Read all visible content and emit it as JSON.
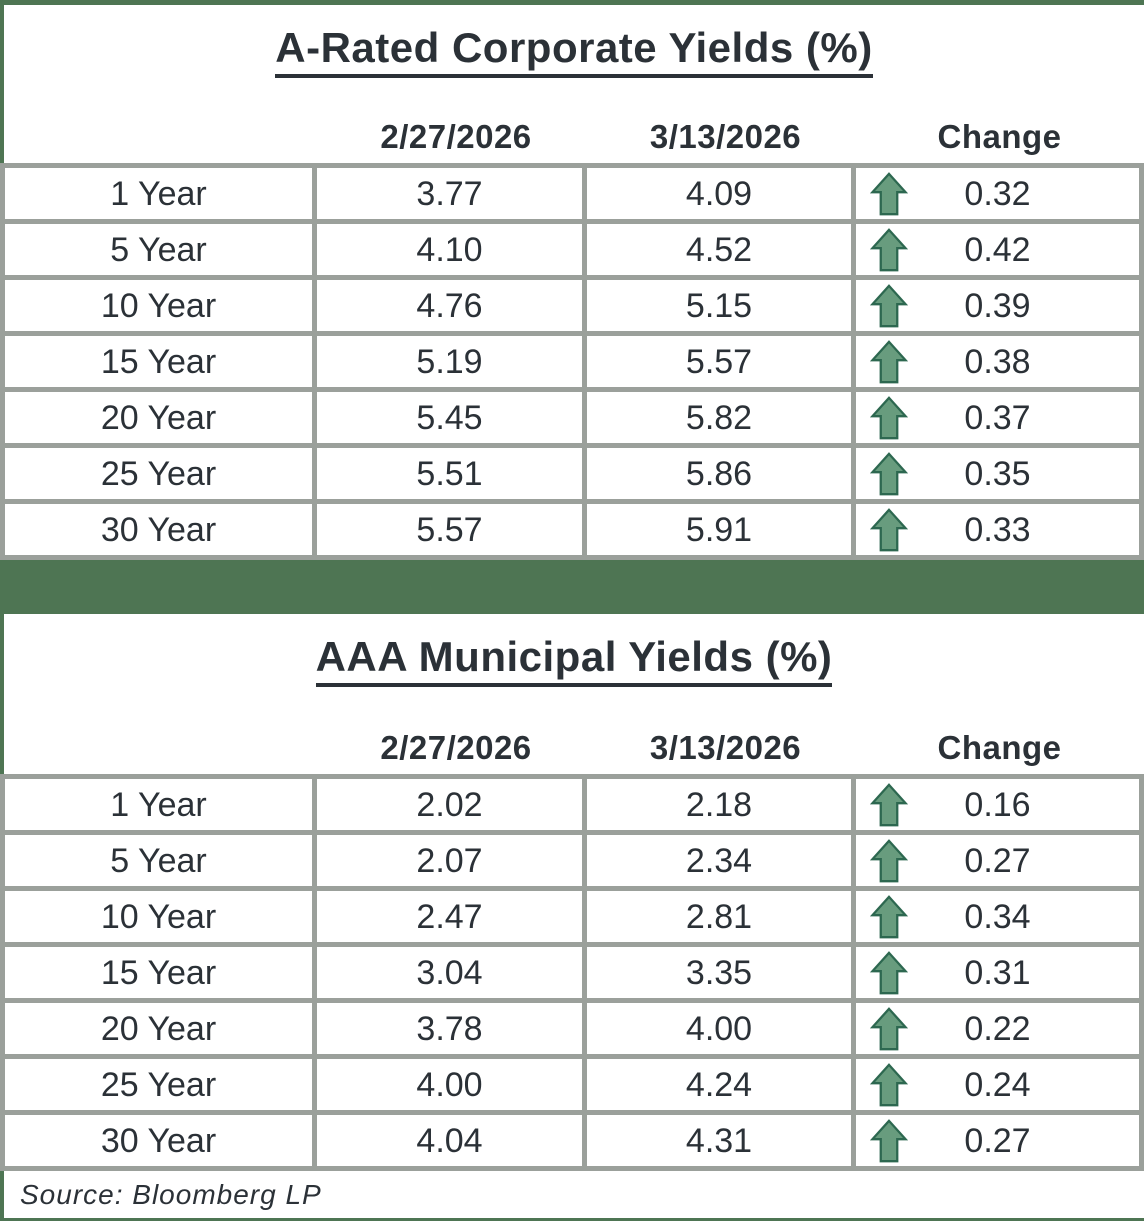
{
  "page": {
    "colors": {
      "green": "#4e7553",
      "gray": "#9ba09b",
      "text": "#2b3137",
      "arrow_fill": "#689c7e",
      "arrow_stroke": "#2d6850"
    }
  },
  "tables": [
    {
      "title": "A-Rated Corporate Yields (%)",
      "columns": [
        "",
        "2/27/2026",
        "3/13/2026",
        "Change"
      ],
      "rows": [
        {
          "term": "1 Year",
          "prev": "3.77",
          "curr": "4.09",
          "direction": "up",
          "change": "0.32"
        },
        {
          "term": "5 Year",
          "prev": "4.10",
          "curr": "4.52",
          "direction": "up",
          "change": "0.42"
        },
        {
          "term": "10 Year",
          "prev": "4.76",
          "curr": "5.15",
          "direction": "up",
          "change": "0.39"
        },
        {
          "term": "15 Year",
          "prev": "5.19",
          "curr": "5.57",
          "direction": "up",
          "change": "0.38"
        },
        {
          "term": "20 Year",
          "prev": "5.45",
          "curr": "5.82",
          "direction": "up",
          "change": "0.37"
        },
        {
          "term": "25 Year",
          "prev": "5.51",
          "curr": "5.86",
          "direction": "up",
          "change": "0.35"
        },
        {
          "term": "30 Year",
          "prev": "5.57",
          "curr": "5.91",
          "direction": "up",
          "change": "0.33"
        }
      ]
    },
    {
      "title": "AAA Municipal Yields (%)",
      "columns": [
        "",
        "2/27/2026",
        "3/13/2026",
        "Change"
      ],
      "rows": [
        {
          "term": "1 Year",
          "prev": "2.02",
          "curr": "2.18",
          "direction": "up",
          "change": "0.16"
        },
        {
          "term": "5 Year",
          "prev": "2.07",
          "curr": "2.34",
          "direction": "up",
          "change": "0.27"
        },
        {
          "term": "10 Year",
          "prev": "2.47",
          "curr": "2.81",
          "direction": "up",
          "change": "0.34"
        },
        {
          "term": "15 Year",
          "prev": "3.04",
          "curr": "3.35",
          "direction": "up",
          "change": "0.31"
        },
        {
          "term": "20 Year",
          "prev": "3.78",
          "curr": "4.00",
          "direction": "up",
          "change": "0.22"
        },
        {
          "term": "25 Year",
          "prev": "4.00",
          "curr": "4.24",
          "direction": "up",
          "change": "0.24"
        },
        {
          "term": "30 Year",
          "prev": "4.04",
          "curr": "4.31",
          "direction": "up",
          "change": "0.27"
        }
      ]
    }
  ],
  "source": "Source: Bloomberg LP"
}
